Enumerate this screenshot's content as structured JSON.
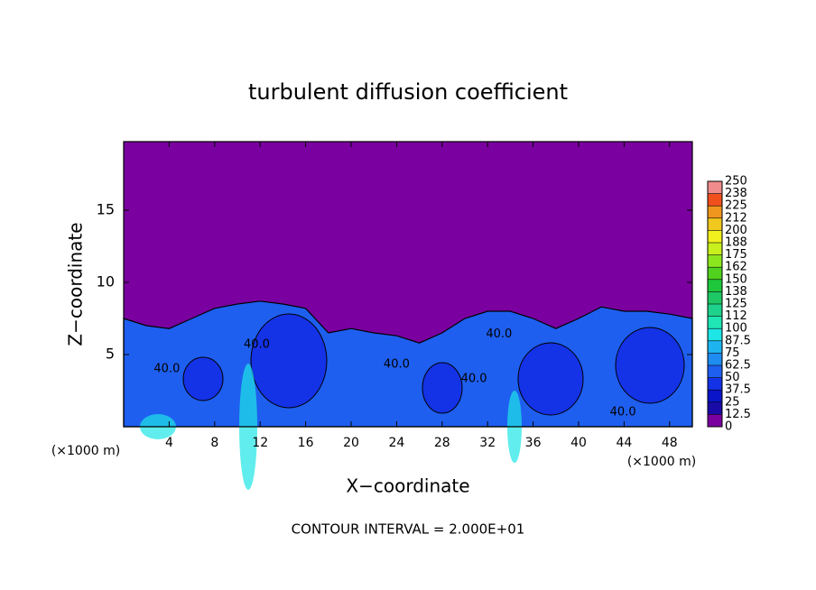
{
  "chart_data": {
    "type": "area",
    "title": "turbulent diffusion coefficient",
    "x_label": "X−coordinate",
    "y_label": "Z−coordinate",
    "x_unit_left": "(×1000 m)",
    "x_unit_right": "(×1000 m)",
    "footer": "CONTOUR INTERVAL = 2.000E+01",
    "xlim": [
      0,
      50
    ],
    "ylim": [
      0,
      19.75
    ],
    "xticks": [
      4,
      8,
      12,
      16,
      20,
      24,
      28,
      32,
      36,
      40,
      44,
      48
    ],
    "yticks": [
      5,
      10,
      15
    ],
    "x": [
      0,
      2,
      4,
      6,
      8,
      10,
      12,
      14,
      16,
      18,
      20,
      22,
      24,
      26,
      28,
      30,
      32,
      34,
      36,
      38,
      40,
      42,
      44,
      46,
      48,
      50
    ],
    "values": [
      7.5,
      7,
      6.8,
      7.5,
      8.2,
      8.5,
      8.7,
      8.5,
      8.2,
      6.5,
      6.8,
      6.5,
      6.3,
      5.8,
      6.5,
      7.5,
      8,
      8,
      7.5,
      6.8,
      7.5,
      8.3,
      8,
      8,
      7.8,
      7.5
    ],
    "color": "#1e5ff0",
    "background_color": "#7a00a0",
    "annotations": [
      {
        "text": "40.0",
        "x": 11.7,
        "y": 5.7
      },
      {
        "text": "40.0",
        "x": 24.0,
        "y": 4.3
      },
      {
        "text": "40.0",
        "x": 33.0,
        "y": 6.4
      },
      {
        "text": "40.0",
        "x": 30.8,
        "y": 3.3
      },
      {
        "text": "40.0",
        "x": 43.9,
        "y": 1.0
      },
      {
        "text": "40.0",
        "x": 3.8,
        "y": 4.0
      }
    ],
    "clim": [
      0,
      250
    ],
    "colorbar_colors": [
      "#7a00a0",
      "#1a0aa8",
      "#0a14c8",
      "#1432e6",
      "#1e5ff0",
      "#1e8cf0",
      "#1eb4f0",
      "#1ee6e6",
      "#1ee6b4",
      "#1ed28c",
      "#1ec864",
      "#1ec83c",
      "#50d21e",
      "#8ce61e",
      "#c8f01e",
      "#f0f01e",
      "#f0c81e",
      "#f0961e",
      "#f0501e",
      "#f08c8c"
    ],
    "colorbar_ticks": [
      0,
      12.5,
      25,
      37.5,
      50,
      62.5,
      75,
      87.5,
      100,
      {
        "value": 112.5,
        "label": "112"
      },
      125,
      {
        "value": 137.5,
        "label": "138"
      },
      150,
      {
        "value": 162.5,
        "label": "162"
      },
      175,
      {
        "value": 187.5,
        "label": "188"
      },
      200,
      {
        "value": 212.5,
        "label": "212"
      },
      225,
      {
        "value": 237.5,
        "label": "238"
      },
      250
    ]
  }
}
